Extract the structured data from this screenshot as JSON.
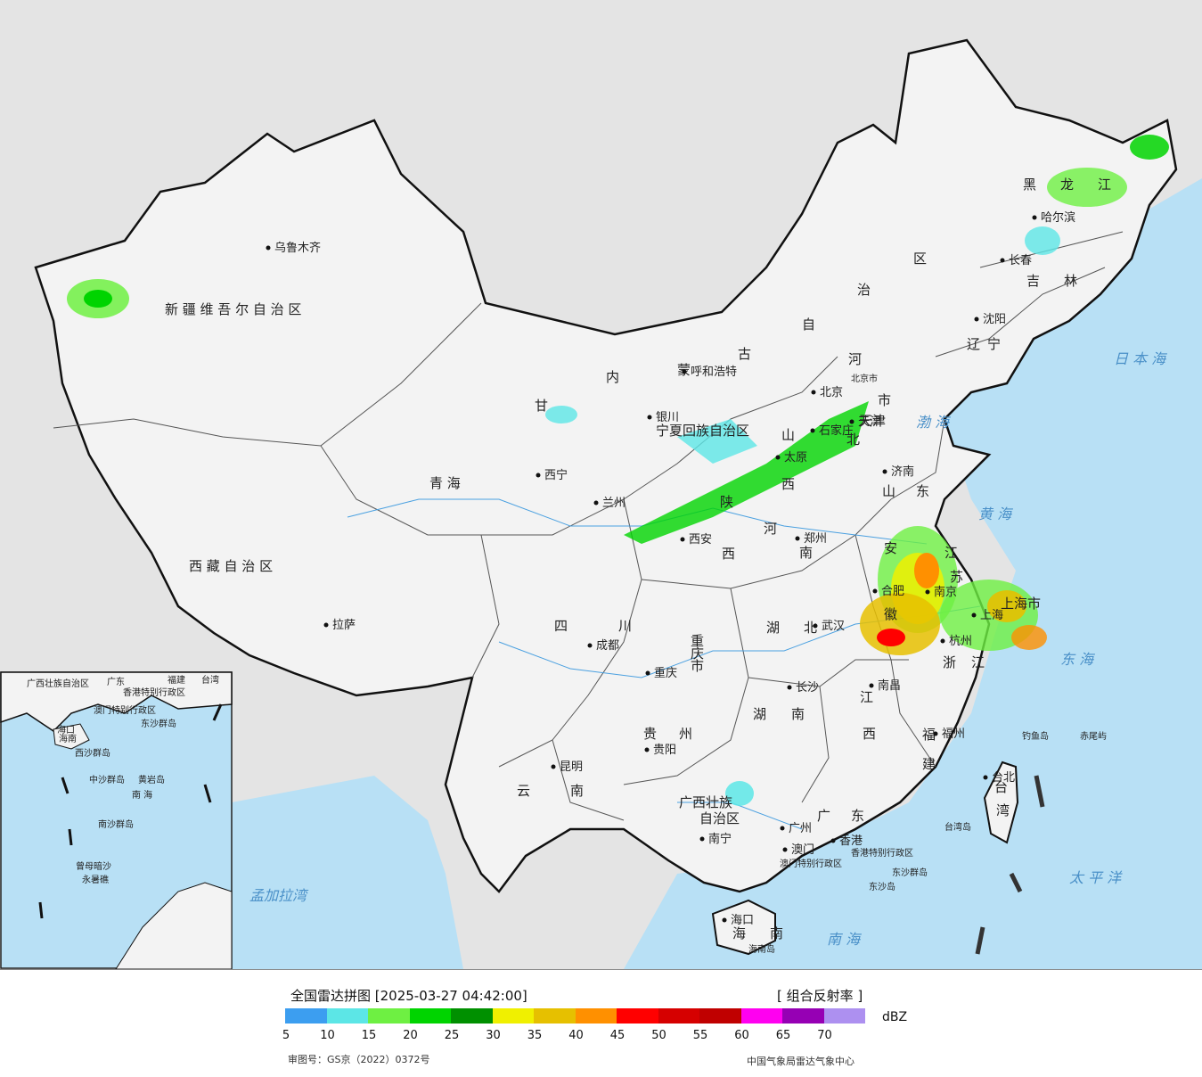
{
  "map": {
    "provinces": [
      {
        "name": "新 疆 维 吾 尔 自 治 区"
      },
      {
        "name": "西 藏 自 治 区"
      },
      {
        "name": "青 海"
      },
      {
        "name": "甘"
      },
      {
        "name": "内"
      },
      {
        "name": "蒙"
      },
      {
        "name": "古"
      },
      {
        "name": "自"
      },
      {
        "name": "治"
      },
      {
        "name": "区"
      },
      {
        "name": "黑"
      },
      {
        "name": "龙"
      },
      {
        "name": "江"
      },
      {
        "name": "吉"
      },
      {
        "name": "林"
      },
      {
        "name": "辽"
      },
      {
        "name": "宁"
      },
      {
        "name": "河"
      },
      {
        "name": "北"
      },
      {
        "name": "山"
      },
      {
        "name": "西"
      },
      {
        "name": "山"
      },
      {
        "name": "东"
      },
      {
        "name": "河"
      },
      {
        "name": "南"
      },
      {
        "name": "陕"
      },
      {
        "name": "西"
      },
      {
        "name": "宁夏回族自治区"
      },
      {
        "name": "四"
      },
      {
        "name": "川"
      },
      {
        "name": "重"
      },
      {
        "name": "庆"
      },
      {
        "name": "市"
      },
      {
        "name": "湖"
      },
      {
        "name": "北"
      },
      {
        "name": "湖"
      },
      {
        "name": "南"
      },
      {
        "name": "江"
      },
      {
        "name": "西"
      },
      {
        "name": "安"
      },
      {
        "name": "徽"
      },
      {
        "name": "江"
      },
      {
        "name": "苏"
      },
      {
        "name": "浙"
      },
      {
        "name": "江"
      },
      {
        "name": "福"
      },
      {
        "name": "建"
      },
      {
        "name": "贵"
      },
      {
        "name": "州"
      },
      {
        "name": "云"
      },
      {
        "name": "南"
      },
      {
        "name": "广西壮族"
      },
      {
        "name": "自治区"
      },
      {
        "name": "广"
      },
      {
        "name": "东"
      },
      {
        "name": "海"
      },
      {
        "name": "南"
      },
      {
        "name": "台"
      },
      {
        "name": "湾"
      },
      {
        "name": "上海市"
      },
      {
        "name": "天津"
      },
      {
        "name": "市"
      }
    ],
    "cities": [
      {
        "name": "乌鲁木齐"
      },
      {
        "name": "拉萨"
      },
      {
        "name": "西宁"
      },
      {
        "name": "兰州"
      },
      {
        "name": "银川"
      },
      {
        "name": "呼和浩特"
      },
      {
        "name": "北京"
      },
      {
        "name": "天津"
      },
      {
        "name": "石家庄"
      },
      {
        "name": "太原"
      },
      {
        "name": "济南"
      },
      {
        "name": "郑州"
      },
      {
        "name": "西安"
      },
      {
        "name": "成都"
      },
      {
        "name": "重庆"
      },
      {
        "name": "武汉"
      },
      {
        "name": "合肥"
      },
      {
        "name": "南京"
      },
      {
        "name": "上海"
      },
      {
        "name": "杭州"
      },
      {
        "name": "南昌"
      },
      {
        "name": "长沙"
      },
      {
        "name": "贵阳"
      },
      {
        "name": "昆明"
      },
      {
        "name": "南宁"
      },
      {
        "name": "广州"
      },
      {
        "name": "福州"
      },
      {
        "name": "台北"
      },
      {
        "name": "沈阳"
      },
      {
        "name": "长春"
      },
      {
        "name": "哈尔滨"
      },
      {
        "name": "海口"
      },
      {
        "name": "澳门"
      },
      {
        "name": "香港"
      }
    ],
    "seas": [
      {
        "name": "日 本 海"
      },
      {
        "name": "渤 海"
      },
      {
        "name": "黄 海"
      },
      {
        "name": "东 海"
      },
      {
        "name": "太 平 洋"
      },
      {
        "name": "南 海"
      },
      {
        "name": "孟加拉湾"
      }
    ],
    "islands": [
      {
        "name": "钓鱼岛"
      },
      {
        "name": "赤尾屿"
      },
      {
        "name": "台湾岛"
      },
      {
        "name": "东沙群岛"
      },
      {
        "name": "东沙岛"
      },
      {
        "name": "海南岛"
      },
      {
        "name": "香港特别行政区"
      },
      {
        "name": "澳门特别行政区"
      },
      {
        "name": "北京市"
      }
    ],
    "inset": {
      "labels": [
        {
          "name": "广西壮族自治区"
        },
        {
          "name": "广东"
        },
        {
          "name": "福建"
        },
        {
          "name": "台湾"
        },
        {
          "name": "香港特别行政区"
        },
        {
          "name": "澳门特别行政区"
        },
        {
          "name": "东沙群岛"
        },
        {
          "name": "海口"
        },
        {
          "name": "海南"
        },
        {
          "name": "西沙群岛"
        },
        {
          "name": "中沙群岛"
        },
        {
          "name": "黄岩岛"
        },
        {
          "name": "南 海"
        },
        {
          "name": "南沙群岛"
        },
        {
          "name": "永暑礁"
        },
        {
          "name": "曾母暗沙"
        }
      ]
    },
    "colors": {
      "land": "#f3f3f3",
      "sea": "#b8e0f5",
      "outside": "#e4e4e4",
      "border": "#111111"
    }
  },
  "legend": {
    "title": "全国雷达拼图 [2025-03-27 04:42:00]",
    "product": "[ 组合反射率 ]",
    "unit": "dBZ",
    "colors": [
      "#3c9ef0",
      "#5ce6e6",
      "#6ef042",
      "#00d400",
      "#009000",
      "#f0f000",
      "#e6c000",
      "#ff9000",
      "#ff0000",
      "#d60000",
      "#c00000",
      "#ff00f0",
      "#9600b4",
      "#ad90f0"
    ],
    "ticks": [
      "5",
      "10",
      "15",
      "20",
      "25",
      "30",
      "35",
      "40",
      "45",
      "50",
      "55",
      "60",
      "65",
      "70"
    ],
    "approval": "审图号：GS京（2022）0372号",
    "producer": "中国气象局雷达气象中心"
  }
}
